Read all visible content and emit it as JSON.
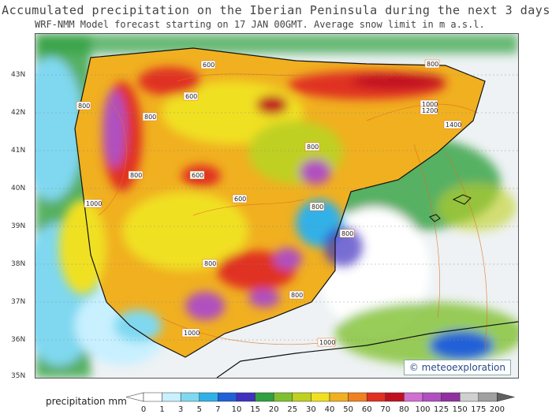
{
  "title": "Accumulated precipitation on the Iberian Peninsula during the next 3 days",
  "subtitle": "WRF-NMM Model forecast starting on 17 JAN 00GMT.  Average snow limit in m a.s.l.",
  "lat_labels": [
    "43N",
    "42N",
    "41N",
    "40N",
    "39N",
    "38N",
    "37N",
    "36N",
    "35N"
  ],
  "credit": "© meteoexploration",
  "legend": {
    "title": "precipitation mm",
    "levels": [
      "0",
      "1",
      "3",
      "5",
      "7",
      "10",
      "15",
      "20",
      "25",
      "30",
      "40",
      "50",
      "60",
      "70",
      "80",
      "100",
      "125",
      "150",
      "175",
      "200"
    ],
    "colors": [
      "#ffffff",
      "#c8f0ff",
      "#7fd8f0",
      "#30b0e8",
      "#2060d8",
      "#4030c0",
      "#30a040",
      "#80c030",
      "#c0d020",
      "#f0e020",
      "#f0b020",
      "#f08020",
      "#e03020",
      "#c01020",
      "#d070d0",
      "#b050c0",
      "#9030a0",
      "#d0d0d0",
      "#a0a0a0",
      "#606060"
    ]
  },
  "snow_labels": [
    "800",
    "800",
    "600",
    "600",
    "800",
    "1000",
    "1200",
    "1400",
    "800",
    "600",
    "800",
    "800",
    "600",
    "1000",
    "800",
    "800",
    "800",
    "1000",
    "1000"
  ]
}
